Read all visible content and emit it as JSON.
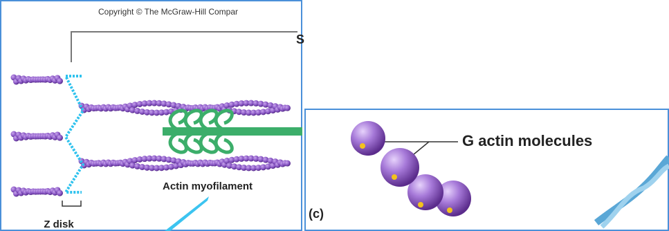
{
  "left_panel": {
    "copyright": "Copyright © The McGraw-Hill Compar",
    "section_letter": "S",
    "labels": [
      "Actin myofilament",
      "Z disk"
    ]
  },
  "right_panel": {
    "label": "G actin molecules",
    "panel_letter": "(c)"
  }
}
